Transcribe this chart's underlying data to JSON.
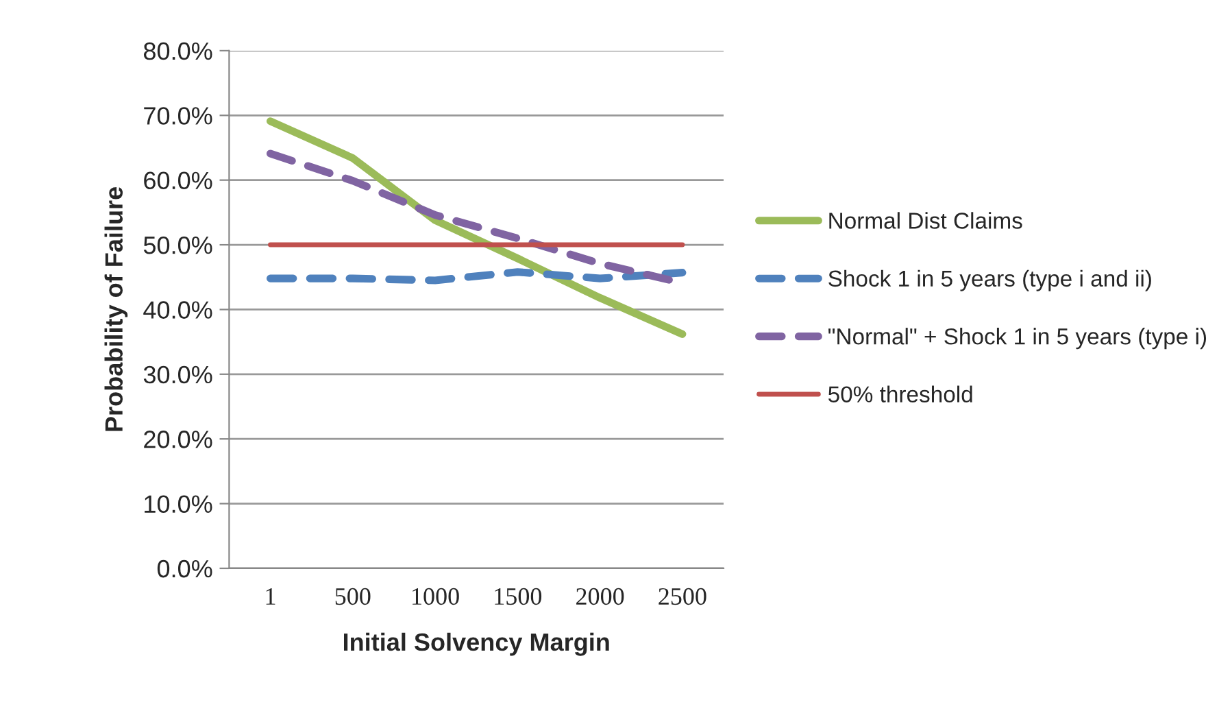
{
  "chart_data": {
    "type": "line",
    "xlabel": "Initial Solvency Margin",
    "ylabel": "Probability of Failure",
    "categories": [
      "1",
      "500",
      "1000",
      "1500",
      "2000",
      "2500"
    ],
    "series": [
      {
        "name": "Normal Dist Claims",
        "color": "#9bbb59",
        "line_style": "solid",
        "values": [
          69.1,
          63.4,
          53.8,
          47.9,
          41.8,
          36.2
        ]
      },
      {
        "name": "Shock 1 in 5 years (type i and ii)",
        "color": "#4f81bd",
        "line_style": "dashed",
        "values": [
          44.8,
          44.8,
          44.5,
          45.8,
          44.8,
          45.7
        ]
      },
      {
        "name": "\"Normal\" + Shock 1 in 5 years (type i)",
        "color": "#8064a2",
        "line_style": "dashed",
        "values": [
          64.1,
          59.9,
          54.6,
          51.0,
          47.1,
          44.1
        ]
      },
      {
        "name": "50% threshold",
        "color": "#c0504d",
        "line_style": "solid",
        "values": [
          50,
          50,
          50,
          50,
          50,
          50
        ]
      }
    ],
    "ylim": [
      0,
      80
    ],
    "yticks": [
      {
        "value": 0,
        "label": "0.0%"
      },
      {
        "value": 10,
        "label": "10.0%"
      },
      {
        "value": 20,
        "label": "20.0%"
      },
      {
        "value": 30,
        "label": "30.0%"
      },
      {
        "value": 40,
        "label": "40.0%"
      },
      {
        "value": 50,
        "label": "50.0%"
      },
      {
        "value": 60,
        "label": "60.0%"
      },
      {
        "value": 70,
        "label": "70.0%"
      },
      {
        "value": 80,
        "label": "80.0%"
      }
    ],
    "grid": "y",
    "legend": "right",
    "marker": "none"
  }
}
